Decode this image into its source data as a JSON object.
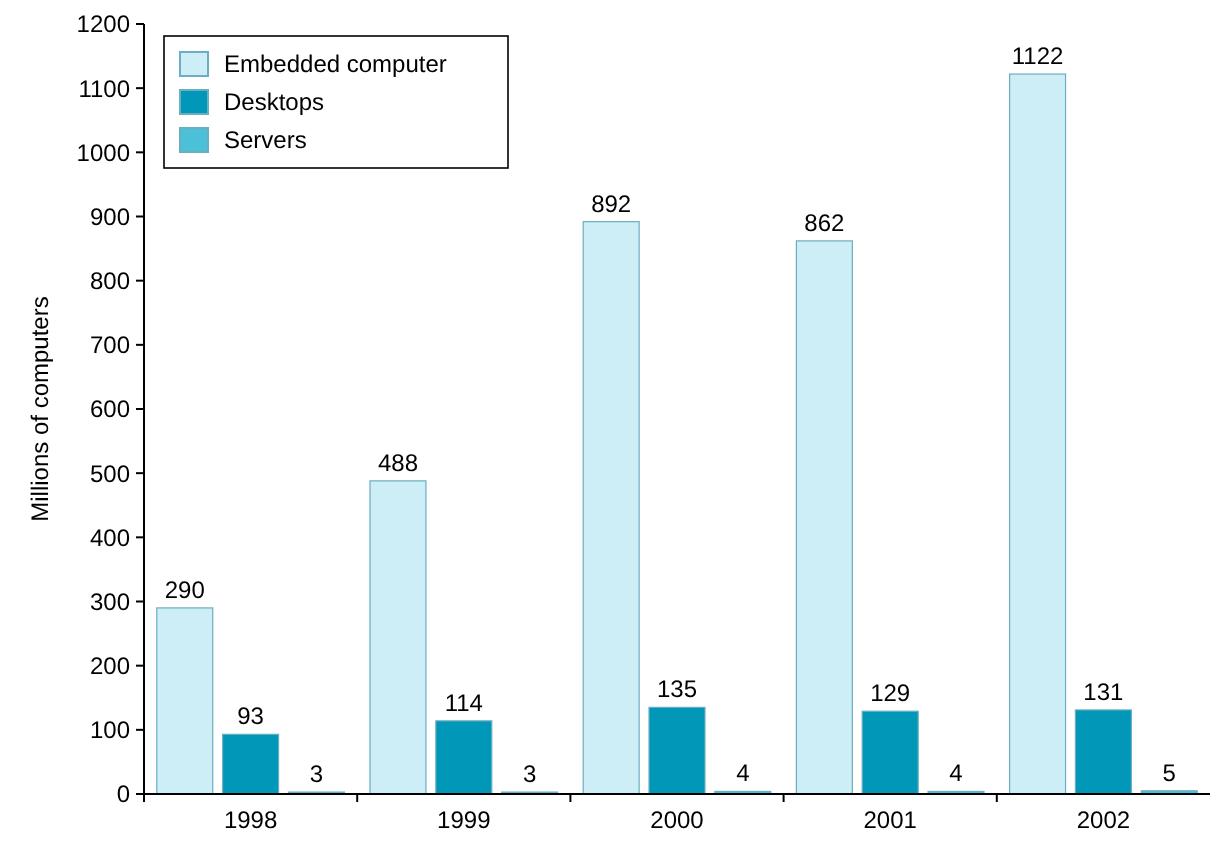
{
  "chart_data": {
    "type": "bar",
    "ylabel": "Millions of computers",
    "categories": [
      "1998",
      "1999",
      "2000",
      "2001",
      "2002"
    ],
    "series": [
      {
        "name": "Embedded computer",
        "color": "#cdeef6",
        "values": [
          290,
          488,
          892,
          862,
          1122
        ]
      },
      {
        "name": "Desktops",
        "color": "#0097b8",
        "values": [
          93,
          114,
          135,
          129,
          131
        ]
      },
      {
        "name": "Servers",
        "color": "#4cc0d8",
        "values": [
          3,
          3,
          4,
          4,
          5
        ]
      }
    ],
    "ylim": [
      0,
      1200
    ],
    "yticks": [
      0,
      100,
      200,
      300,
      400,
      500,
      600,
      700,
      800,
      900,
      1000,
      1100,
      1200
    ],
    "data_labels": true,
    "legend": "top left",
    "grid": false
  }
}
